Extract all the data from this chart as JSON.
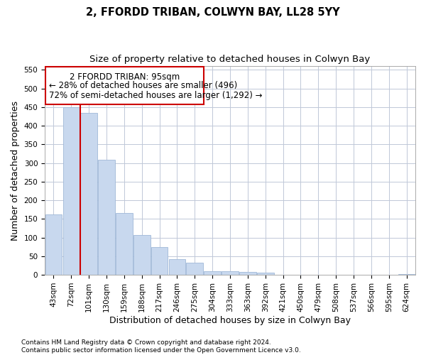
{
  "title": "2, FFORDD TRIBAN, COLWYN BAY, LL28 5YY",
  "subtitle": "Size of property relative to detached houses in Colwyn Bay",
  "xlabel": "Distribution of detached houses by size in Colwyn Bay",
  "ylabel": "Number of detached properties",
  "bar_color": "#c8d8ee",
  "bar_edge_color": "#a0b8d8",
  "categories": [
    "43sqm",
    "72sqm",
    "101sqm",
    "130sqm",
    "159sqm",
    "188sqm",
    "217sqm",
    "246sqm",
    "275sqm",
    "304sqm",
    "333sqm",
    "363sqm",
    "392sqm",
    "421sqm",
    "450sqm",
    "479sqm",
    "508sqm",
    "537sqm",
    "566sqm",
    "595sqm",
    "624sqm"
  ],
  "values": [
    162,
    450,
    435,
    308,
    165,
    107,
    74,
    43,
    33,
    10,
    10,
    8,
    5,
    0,
    0,
    0,
    0,
    0,
    0,
    0,
    3
  ],
  "ylim": [
    0,
    560
  ],
  "yticks": [
    0,
    50,
    100,
    150,
    200,
    250,
    300,
    350,
    400,
    450,
    500,
    550
  ],
  "property_line_color": "#cc0000",
  "annotation_title": "2 FFORDD TRIBAN: 95sqm",
  "annotation_line1": "← 28% of detached houses are smaller (496)",
  "annotation_line2": "72% of semi-detached houses are larger (1,292) →",
  "annotation_box_color": "#cc0000",
  "footnote1": "Contains HM Land Registry data © Crown copyright and database right 2024.",
  "footnote2": "Contains public sector information licensed under the Open Government Licence v3.0.",
  "bg_color": "#ffffff",
  "grid_color": "#c0c8d8",
  "title_fontsize": 10.5,
  "subtitle_fontsize": 9.5,
  "axis_label_fontsize": 9,
  "tick_fontsize": 7.5,
  "annotation_fontsize": 8.5,
  "footnote_fontsize": 6.5
}
